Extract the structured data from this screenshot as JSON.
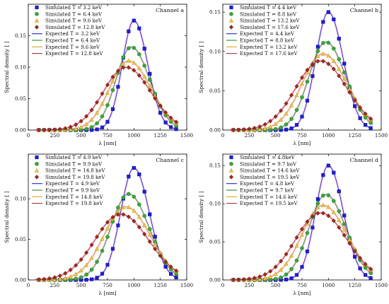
{
  "chart_data": [
    {
      "type": "line",
      "channel_label": "Channel a",
      "xlabel": "λ [nm]",
      "ylabel": "Spectral density [ ]",
      "xlim": [
        0,
        1500
      ],
      "ylim": [
        0,
        0.2
      ],
      "xticks": [
        0,
        250,
        500,
        750,
        1000,
        1250,
        1500
      ],
      "yticks": [
        0.0,
        0.05,
        0.1,
        0.15
      ],
      "ytick_labels": [
        "0.00",
        "0.05",
        "0.10",
        "0.15"
      ],
      "grid": false,
      "legend_position": "top-left",
      "x": [
        100,
        150,
        200,
        250,
        300,
        350,
        400,
        450,
        500,
        550,
        600,
        650,
        700,
        750,
        800,
        850,
        900,
        950,
        1000,
        1050,
        1100,
        1150,
        1200,
        1250,
        1300,
        1350,
        1400
      ],
      "series": [
        {
          "name": "Simulated T = 3.2 keV",
          "kind": "simulated",
          "marker": "square",
          "color": "#1f1fd0",
          "peak": 1000,
          "height": 0.174,
          "wl": 110,
          "wr": 130
        },
        {
          "name": "Simulated T = 6.4 keV",
          "kind": "simulated",
          "marker": "circle",
          "color": "#3aa63a",
          "peak": 975,
          "height": 0.132,
          "wl": 145,
          "wr": 175
        },
        {
          "name": "Simulated T = 9.6 keV",
          "kind": "simulated",
          "marker": "triangle",
          "color": "#e8c547",
          "peak": 950,
          "height": 0.11,
          "wl": 180,
          "wr": 210
        },
        {
          "name": "Simulated T = 12.8 keV",
          "kind": "simulated",
          "marker": "diamond",
          "color": "#9e2a1a",
          "peak": 925,
          "height": 0.1,
          "wl": 215,
          "wr": 235
        },
        {
          "name": "Expected T = 3.2 keV",
          "kind": "expected",
          "color": "#1f1fd0"
        },
        {
          "name": "Expected T = 6.4 keV",
          "kind": "expected",
          "color": "#2e8b2e"
        },
        {
          "name": "Expected T = 9.6 keV",
          "kind": "expected",
          "color": "#d9a520"
        },
        {
          "name": "Expected T = 12.8 keV",
          "kind": "expected",
          "color": "#a83232"
        }
      ]
    },
    {
      "type": "line",
      "channel_label": "Channel b",
      "xlabel": "λ [nm]",
      "ylabel": "Spectral density [ ]",
      "xlim": [
        0,
        1500
      ],
      "ylim": [
        0,
        0.16
      ],
      "xticks": [
        0,
        250,
        500,
        750,
        1000,
        1250,
        1500
      ],
      "yticks": [
        0.0,
        0.05,
        0.1,
        0.15
      ],
      "ytick_labels": [
        "0.00",
        "0.05",
        "0.10",
        "0.15"
      ],
      "grid": false,
      "legend_position": "top-left",
      "x": [
        100,
        150,
        200,
        250,
        300,
        350,
        400,
        450,
        500,
        550,
        600,
        650,
        700,
        750,
        800,
        850,
        900,
        950,
        1000,
        1050,
        1100,
        1150,
        1200,
        1250,
        1300,
        1350,
        1400
      ],
      "series": [
        {
          "name": "Simulated T = 4.4 keV",
          "kind": "simulated",
          "marker": "square",
          "color": "#1f1fd0",
          "peak": 1000,
          "height": 0.15,
          "wl": 120,
          "wr": 140
        },
        {
          "name": "Simulated T = 8.8 keV",
          "kind": "simulated",
          "marker": "circle",
          "color": "#3aa63a",
          "peak": 975,
          "height": 0.112,
          "wl": 160,
          "wr": 190
        },
        {
          "name": "Simulated T = 13.2 keV",
          "kind": "simulated",
          "marker": "triangle",
          "color": "#e8c547",
          "peak": 950,
          "height": 0.097,
          "wl": 200,
          "wr": 225
        },
        {
          "name": "Simulated T = 17.6 keV",
          "kind": "simulated",
          "marker": "diamond",
          "color": "#9e2a1a",
          "peak": 925,
          "height": 0.088,
          "wl": 235,
          "wr": 250
        },
        {
          "name": "Expected T = 4.4 keV",
          "kind": "expected",
          "color": "#1f1fd0"
        },
        {
          "name": "Expected T = 8.8 keV",
          "kind": "expected",
          "color": "#2e8b2e"
        },
        {
          "name": "Expected T = 13.2 keV",
          "kind": "expected",
          "color": "#d9a520"
        },
        {
          "name": "Expected T = 17.6 keV",
          "kind": "expected",
          "color": "#a83232"
        }
      ]
    },
    {
      "type": "line",
      "channel_label": "Channel c",
      "xlabel": "λ [nm]",
      "ylabel": "Spectral density [ ]",
      "xlim": [
        0,
        1500
      ],
      "ylim": [
        0,
        0.155
      ],
      "xticks": [
        0,
        250,
        500,
        750,
        1000,
        1250,
        1500
      ],
      "yticks": [
        0.0,
        0.05,
        0.1
      ],
      "ytick_labels": [
        "0.00",
        "0.05",
        "0.10"
      ],
      "grid": false,
      "legend_position": "top-left",
      "x": [
        100,
        150,
        200,
        250,
        300,
        350,
        400,
        450,
        500,
        550,
        600,
        650,
        700,
        750,
        800,
        850,
        900,
        950,
        1000,
        1050,
        1100,
        1150,
        1200,
        1250,
        1300,
        1350,
        1400
      ],
      "series": [
        {
          "name": "Simulated T = 4.9 keV",
          "kind": "simulated",
          "marker": "square",
          "color": "#1f1fd0",
          "peak": 1000,
          "height": 0.138,
          "wl": 125,
          "wr": 145
        },
        {
          "name": "Simulated T = 9.9 keV",
          "kind": "simulated",
          "marker": "circle",
          "color": "#3aa63a",
          "peak": 950,
          "height": 0.106,
          "wl": 170,
          "wr": 195
        },
        {
          "name": "Simulated T = 14.8 keV",
          "kind": "simulated",
          "marker": "triangle",
          "color": "#e8c547",
          "peak": 925,
          "height": 0.09,
          "wl": 210,
          "wr": 230
        },
        {
          "name": "Simulated T = 19.8 keV",
          "kind": "simulated",
          "marker": "diamond",
          "color": "#9e2a1a",
          "peak": 875,
          "height": 0.081,
          "wl": 245,
          "wr": 265
        },
        {
          "name": "Expected T = 4.9 keV",
          "kind": "expected",
          "color": "#1f1fd0"
        },
        {
          "name": "Expected T = 9.9 keV",
          "kind": "expected",
          "color": "#2e8b2e"
        },
        {
          "name": "Expected T = 14.8 keV",
          "kind": "expected",
          "color": "#d9a520"
        },
        {
          "name": "Expected T = 19.8 keV",
          "kind": "expected",
          "color": "#a83232"
        }
      ]
    },
    {
      "type": "line",
      "channel_label": "Channel d",
      "xlabel": "λ [nm]",
      "ylabel": "Spectral density [ ]",
      "xlim": [
        0,
        1500
      ],
      "ylim": [
        0,
        0.165
      ],
      "xticks": [
        0,
        250,
        500,
        750,
        1000,
        1250,
        1500
      ],
      "yticks": [
        0.0,
        0.05,
        0.1,
        0.15
      ],
      "ytick_labels": [
        "0.00",
        "0.05",
        "0.10",
        "0.15"
      ],
      "grid": false,
      "legend_position": "top-left",
      "x": [
        100,
        150,
        200,
        250,
        300,
        350,
        400,
        450,
        500,
        550,
        600,
        650,
        700,
        750,
        800,
        850,
        900,
        950,
        1000,
        1050,
        1100,
        1150,
        1200,
        1250,
        1300,
        1350,
        1400
      ],
      "series": [
        {
          "name": "Simulated T = 4.8keV",
          "kind": "simulated",
          "marker": "square",
          "color": "#1f1fd0",
          "peak": 1000,
          "height": 0.15,
          "wl": 120,
          "wr": 140
        },
        {
          "name": "Simulated T = 9.7 keV",
          "kind": "simulated",
          "marker": "circle",
          "color": "#3aa63a",
          "peak": 975,
          "height": 0.112,
          "wl": 160,
          "wr": 190
        },
        {
          "name": "Simulated T = 14.6 keV",
          "kind": "simulated",
          "marker": "triangle",
          "color": "#e8c547",
          "peak": 950,
          "height": 0.098,
          "wl": 200,
          "wr": 225
        },
        {
          "name": "Simulated T = 19.5 keV",
          "kind": "simulated",
          "marker": "diamond",
          "color": "#9e2a1a",
          "peak": 925,
          "height": 0.088,
          "wl": 235,
          "wr": 250
        },
        {
          "name": "Expected T = 4.8 keV",
          "kind": "expected",
          "color": "#1f1fd0"
        },
        {
          "name": "Expected T = 9.7 keV",
          "kind": "expected",
          "color": "#2e8b2e"
        },
        {
          "name": "Expected T = 14.6 keV",
          "kind": "expected",
          "color": "#d9a520"
        },
        {
          "name": "Expected T = 19.5 keV",
          "kind": "expected",
          "color": "#a83232"
        }
      ]
    }
  ]
}
